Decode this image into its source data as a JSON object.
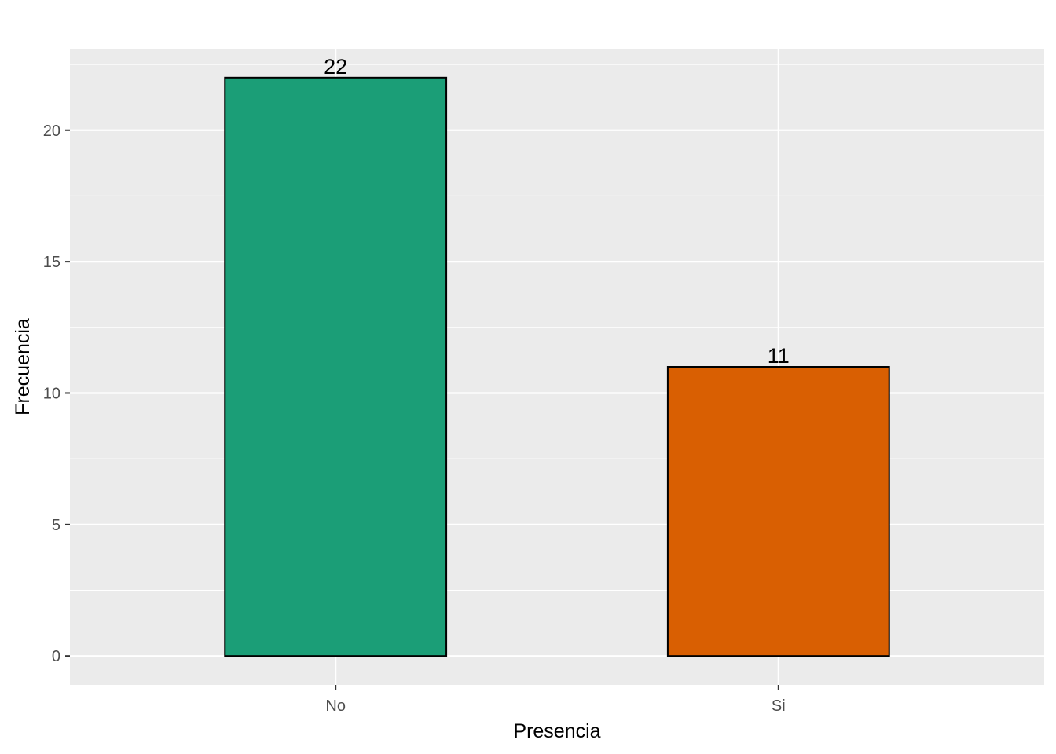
{
  "chart_data": {
    "type": "bar",
    "title": "",
    "xlabel": "Presencia",
    "ylabel": "Frecuencia",
    "categories": [
      "No",
      "Si"
    ],
    "values": [
      22,
      11
    ],
    "data_labels": [
      "22",
      "11"
    ],
    "bar_colors": [
      "#1B9E77",
      "#D95F02"
    ],
    "bar_outline": "#000000",
    "ylim": [
      -1.1,
      23.1
    ],
    "yticks": [
      0,
      5,
      10,
      15,
      20
    ],
    "ytick_labels": [
      "0",
      "5",
      "10",
      "15",
      "20"
    ],
    "grid": true,
    "panel_background": "#EBEBEB",
    "legend": "none"
  }
}
